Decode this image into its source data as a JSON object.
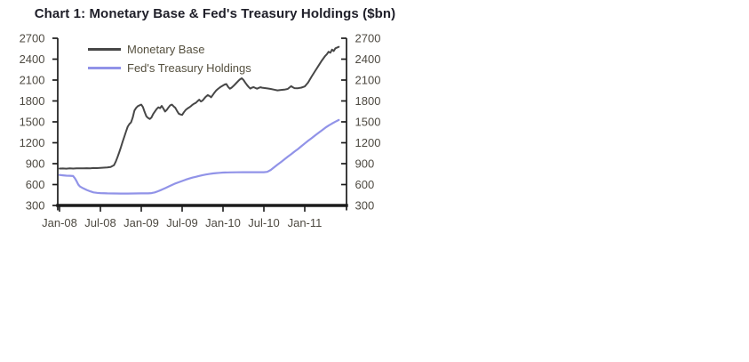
{
  "page": {
    "background": "#ffffff"
  },
  "colors": {
    "axis": "#1b1b1b",
    "tick_label": "#4e4a42",
    "title": "#20202a",
    "legend_text": "#55503f",
    "monetary_base_line": "#474747",
    "treasury_holdings_line": "#9193e8"
  },
  "chart_data": {
    "type": "line",
    "title": "Chart 1: Monetary Base & Fed's Treasury Holdings ($bn)",
    "xlabel": "",
    "ylabel": "",
    "ylim": [
      300,
      2700
    ],
    "ytick_step": 300,
    "ytick_labels": [
      "300",
      "600",
      "900",
      "1200",
      "1500",
      "1800",
      "2100",
      "2400",
      "2700"
    ],
    "y_axis_sides": [
      "left",
      "right"
    ],
    "grid": false,
    "legend_position": "inside-top-left",
    "x_unit": "months-since-Jan-2008",
    "x_ticks": [
      {
        "month": 0,
        "label": "Jan-08"
      },
      {
        "month": 6,
        "label": "Jul-08"
      },
      {
        "month": 12,
        "label": "Jan-09"
      },
      {
        "month": 18,
        "label": "Jul-09"
      },
      {
        "month": 24,
        "label": "Jan-10"
      },
      {
        "month": 30,
        "label": "Jul-10"
      },
      {
        "month": 36,
        "label": "Jan-11"
      }
    ],
    "series": [
      {
        "name": "Monetary Base",
        "color": "#474747",
        "width": 2,
        "points": [
          [
            0,
            830
          ],
          [
            0.5,
            831
          ],
          [
            1,
            829
          ],
          [
            1.5,
            832
          ],
          [
            2,
            830
          ],
          [
            2.5,
            833
          ],
          [
            3,
            834
          ],
          [
            3.5,
            832
          ],
          [
            4,
            835
          ],
          [
            4.5,
            834
          ],
          [
            5,
            837
          ],
          [
            5.5,
            836
          ],
          [
            6,
            840
          ],
          [
            6.5,
            842
          ],
          [
            7,
            845
          ],
          [
            7.5,
            852
          ],
          [
            8,
            878
          ],
          [
            8.25,
            930
          ],
          [
            8.5,
            992
          ],
          [
            8.75,
            1060
          ],
          [
            9,
            1132
          ],
          [
            9.25,
            1210
          ],
          [
            9.5,
            1282
          ],
          [
            9.75,
            1360
          ],
          [
            10,
            1430
          ],
          [
            10.25,
            1468
          ],
          [
            10.5,
            1492
          ],
          [
            10.75,
            1562
          ],
          [
            11,
            1662
          ],
          [
            11.25,
            1702
          ],
          [
            11.5,
            1726
          ],
          [
            11.75,
            1738
          ],
          [
            12,
            1748
          ],
          [
            12.25,
            1712
          ],
          [
            12.5,
            1642
          ],
          [
            12.75,
            1578
          ],
          [
            13,
            1556
          ],
          [
            13.25,
            1542
          ],
          [
            13.5,
            1562
          ],
          [
            13.75,
            1612
          ],
          [
            14,
            1648
          ],
          [
            14.25,
            1684
          ],
          [
            14.5,
            1708
          ],
          [
            14.75,
            1696
          ],
          [
            15,
            1728
          ],
          [
            15.25,
            1692
          ],
          [
            15.5,
            1648
          ],
          [
            15.75,
            1674
          ],
          [
            16,
            1708
          ],
          [
            16.25,
            1738
          ],
          [
            16.5,
            1748
          ],
          [
            16.75,
            1722
          ],
          [
            17,
            1702
          ],
          [
            17.25,
            1656
          ],
          [
            17.5,
            1618
          ],
          [
            17.75,
            1606
          ],
          [
            18,
            1600
          ],
          [
            18.25,
            1636
          ],
          [
            18.5,
            1668
          ],
          [
            18.75,
            1690
          ],
          [
            19,
            1706
          ],
          [
            19.25,
            1722
          ],
          [
            19.5,
            1744
          ],
          [
            19.75,
            1760
          ],
          [
            20,
            1772
          ],
          [
            20.25,
            1796
          ],
          [
            20.5,
            1818
          ],
          [
            20.75,
            1792
          ],
          [
            21,
            1806
          ],
          [
            21.25,
            1836
          ],
          [
            21.5,
            1862
          ],
          [
            21.75,
            1884
          ],
          [
            22,
            1872
          ],
          [
            22.25,
            1852
          ],
          [
            22.5,
            1886
          ],
          [
            22.75,
            1920
          ],
          [
            23,
            1950
          ],
          [
            23.25,
            1972
          ],
          [
            23.5,
            1992
          ],
          [
            23.75,
            2008
          ],
          [
            24,
            2022
          ],
          [
            24.25,
            2036
          ],
          [
            24.5,
            2042
          ],
          [
            24.75,
            2002
          ],
          [
            25,
            1976
          ],
          [
            25.25,
            1990
          ],
          [
            25.5,
            2012
          ],
          [
            25.75,
            2036
          ],
          [
            26,
            2062
          ],
          [
            26.25,
            2088
          ],
          [
            26.5,
            2112
          ],
          [
            26.75,
            2126
          ],
          [
            27,
            2102
          ],
          [
            27.25,
            2066
          ],
          [
            27.5,
            2032
          ],
          [
            27.75,
            2002
          ],
          [
            28,
            1978
          ],
          [
            28.25,
            1992
          ],
          [
            28.5,
            1998
          ],
          [
            28.75,
            1986
          ],
          [
            29,
            1976
          ],
          [
            29.25,
            1988
          ],
          [
            29.5,
            1996
          ],
          [
            29.75,
            1990
          ],
          [
            30,
            1986
          ],
          [
            30.5,
            1980
          ],
          [
            31,
            1972
          ],
          [
            31.5,
            1962
          ],
          [
            32,
            1952
          ],
          [
            32.5,
            1958
          ],
          [
            33,
            1962
          ],
          [
            33.5,
            1972
          ],
          [
            34,
            2012
          ],
          [
            34.25,
            1996
          ],
          [
            34.5,
            1984
          ],
          [
            35,
            1982
          ],
          [
            35.5,
            1992
          ],
          [
            36,
            2008
          ],
          [
            36.25,
            2036
          ],
          [
            36.5,
            2066
          ],
          [
            37,
            2150
          ],
          [
            37.5,
            2226
          ],
          [
            38,
            2302
          ],
          [
            38.5,
            2380
          ],
          [
            39,
            2446
          ],
          [
            39.25,
            2472
          ],
          [
            39.5,
            2506
          ],
          [
            39.75,
            2492
          ],
          [
            40,
            2536
          ],
          [
            40.25,
            2516
          ],
          [
            40.5,
            2556
          ],
          [
            41,
            2576
          ]
        ]
      },
      {
        "name": "Fed's Treasury Holdings",
        "color": "#9193e8",
        "width": 2.2,
        "points": [
          [
            0,
            738
          ],
          [
            0.5,
            733
          ],
          [
            1,
            728
          ],
          [
            1.5,
            726
          ],
          [
            2,
            722
          ],
          [
            2.25,
            690
          ],
          [
            2.5,
            648
          ],
          [
            2.75,
            600
          ],
          [
            3,
            572
          ],
          [
            3.5,
            545
          ],
          [
            4,
            522
          ],
          [
            4.5,
            503
          ],
          [
            5,
            488
          ],
          [
            5.5,
            481
          ],
          [
            6,
            477
          ],
          [
            7,
            474
          ],
          [
            8,
            472
          ],
          [
            9,
            471
          ],
          [
            10,
            471
          ],
          [
            11,
            472
          ],
          [
            12,
            473
          ],
          [
            13,
            474
          ],
          [
            13.5,
            477
          ],
          [
            14,
            488
          ],
          [
            14.5,
            506
          ],
          [
            15,
            526
          ],
          [
            15.5,
            548
          ],
          [
            16,
            570
          ],
          [
            16.5,
            593
          ],
          [
            17,
            615
          ],
          [
            17.5,
            633
          ],
          [
            18,
            651
          ],
          [
            18.5,
            669
          ],
          [
            19,
            686
          ],
          [
            19.5,
            699
          ],
          [
            20,
            711
          ],
          [
            20.5,
            724
          ],
          [
            21,
            735
          ],
          [
            21.5,
            744
          ],
          [
            22,
            752
          ],
          [
            22.5,
            759
          ],
          [
            23,
            765
          ],
          [
            23.5,
            769
          ],
          [
            24,
            772
          ],
          [
            25,
            775
          ],
          [
            26,
            776
          ],
          [
            27,
            777
          ],
          [
            28,
            777
          ],
          [
            29,
            777
          ],
          [
            30,
            778
          ],
          [
            30.5,
            783
          ],
          [
            31,
            810
          ],
          [
            31.5,
            848
          ],
          [
            32,
            886
          ],
          [
            32.5,
            923
          ],
          [
            33,
            960
          ],
          [
            33.5,
            998
          ],
          [
            34,
            1035
          ],
          [
            34.5,
            1073
          ],
          [
            35,
            1110
          ],
          [
            35.5,
            1150
          ],
          [
            36,
            1190
          ],
          [
            36.5,
            1228
          ],
          [
            37,
            1265
          ],
          [
            37.5,
            1303
          ],
          [
            38,
            1340
          ],
          [
            38.5,
            1378
          ],
          [
            39,
            1415
          ],
          [
            39.5,
            1447
          ],
          [
            40,
            1476
          ],
          [
            40.5,
            1502
          ],
          [
            41,
            1527
          ]
        ]
      }
    ]
  }
}
